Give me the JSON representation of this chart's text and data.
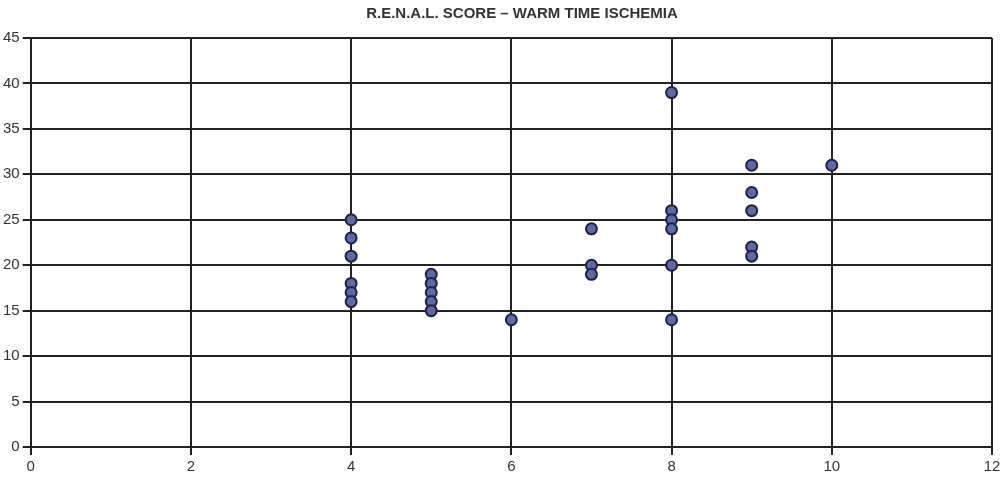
{
  "chart_data": {
    "type": "scatter",
    "title": "R.E.N.A.L. SCORE – WARM TIME ISCHEMIA",
    "x": [
      4,
      4,
      4,
      4,
      4,
      4,
      5,
      5,
      5,
      5,
      5,
      6,
      7,
      7,
      7,
      8,
      8,
      8,
      8,
      8,
      8,
      9,
      9,
      9,
      9,
      9,
      10
    ],
    "values": [
      25,
      23,
      21,
      18,
      17,
      16,
      19,
      18,
      17,
      16,
      15,
      14,
      24,
      20,
      19,
      39,
      26,
      25,
      24,
      20,
      14,
      31,
      28,
      26,
      22,
      21,
      31
    ],
    "color": "#5b69a8",
    "marker": "circle",
    "xlim": [
      0,
      12
    ],
    "xticks": [
      0,
      2,
      4,
      6,
      8,
      10,
      12
    ],
    "ylim": [
      0,
      45
    ],
    "yticks": [
      0,
      5,
      10,
      15,
      20,
      25,
      30,
      35,
      40,
      45
    ],
    "grid": true
  }
}
